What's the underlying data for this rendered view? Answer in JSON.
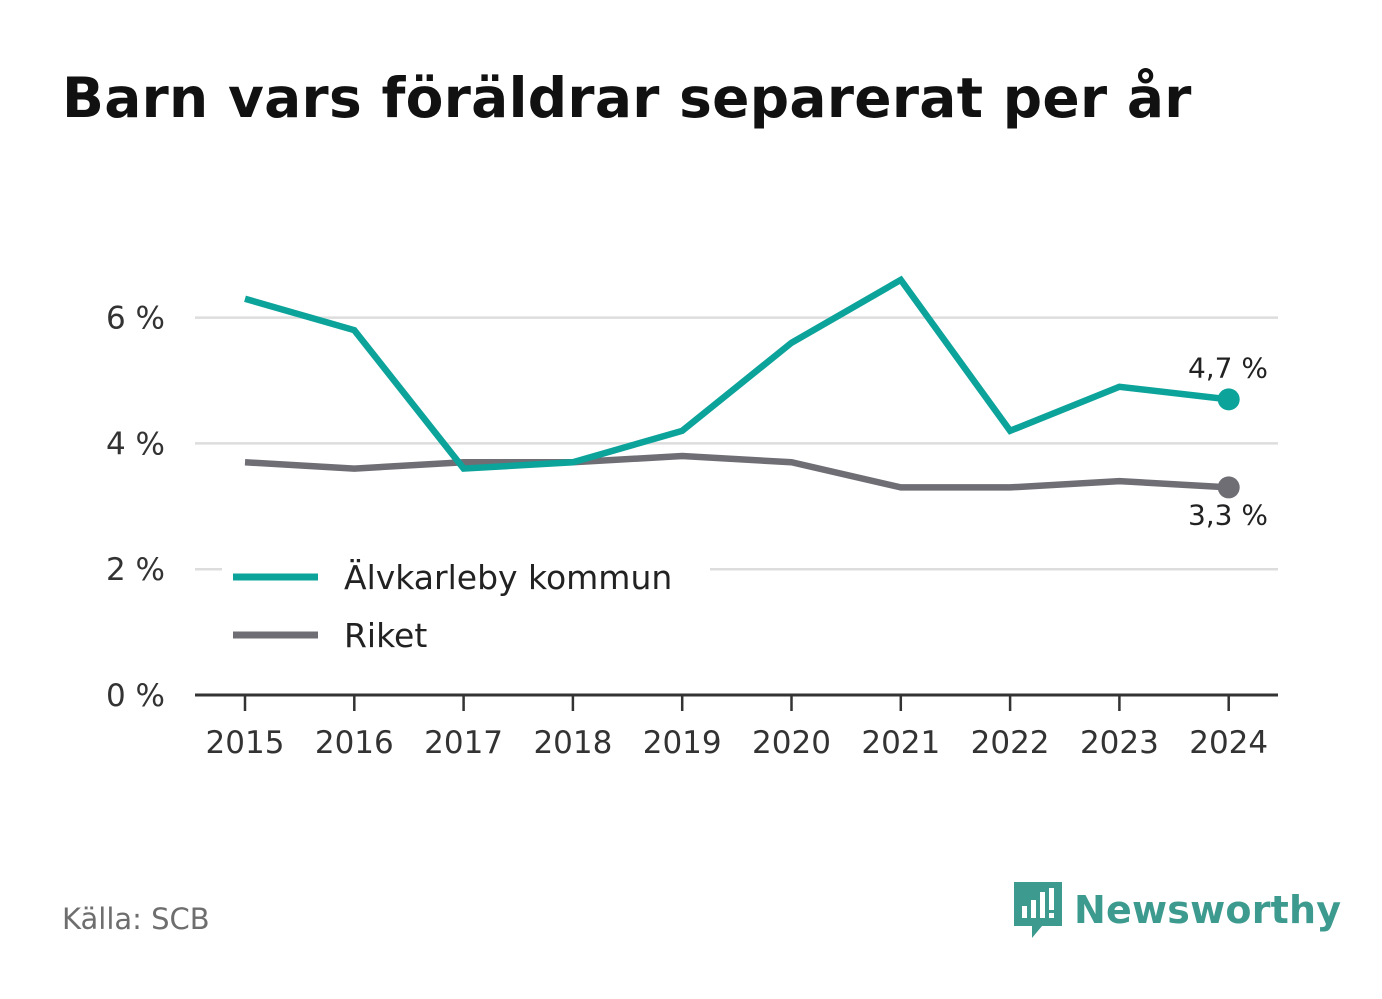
{
  "header": {
    "title": "Barn vars föräldrar separerat per år"
  },
  "footer": {
    "source": "Källa: SCB",
    "brand": "Newsworthy"
  },
  "colors": {
    "primary": "#0ba39a",
    "secondary": "#6f6e75",
    "grid": "#dddddd",
    "axis": "#333333",
    "brand": "#3d9a8f"
  },
  "chart_data": {
    "type": "line",
    "title": "Barn vars föräldrar separerat per år",
    "xlabel": "",
    "ylabel": "",
    "categories": [
      "2015",
      "2016",
      "2017",
      "2018",
      "2019",
      "2020",
      "2021",
      "2022",
      "2023",
      "2024"
    ],
    "ylim": [
      0,
      7
    ],
    "yticks": [
      0,
      2,
      4,
      6
    ],
    "ytick_labels": [
      "0 %",
      "2 %",
      "4 %",
      "6 %"
    ],
    "grid": true,
    "legend_position": "bottom-left",
    "series": [
      {
        "name": "Älvkarleby kommun",
        "color": "#0ba39a",
        "values": [
          6.3,
          5.8,
          3.6,
          3.7,
          4.2,
          5.6,
          6.6,
          4.2,
          4.9,
          4.7
        ],
        "end_label": "4,7 %"
      },
      {
        "name": "Riket",
        "color": "#6f6e75",
        "values": [
          3.7,
          3.6,
          3.7,
          3.7,
          3.8,
          3.7,
          3.3,
          3.3,
          3.4,
          3.3
        ],
        "end_label": "3,3 %"
      }
    ]
  }
}
